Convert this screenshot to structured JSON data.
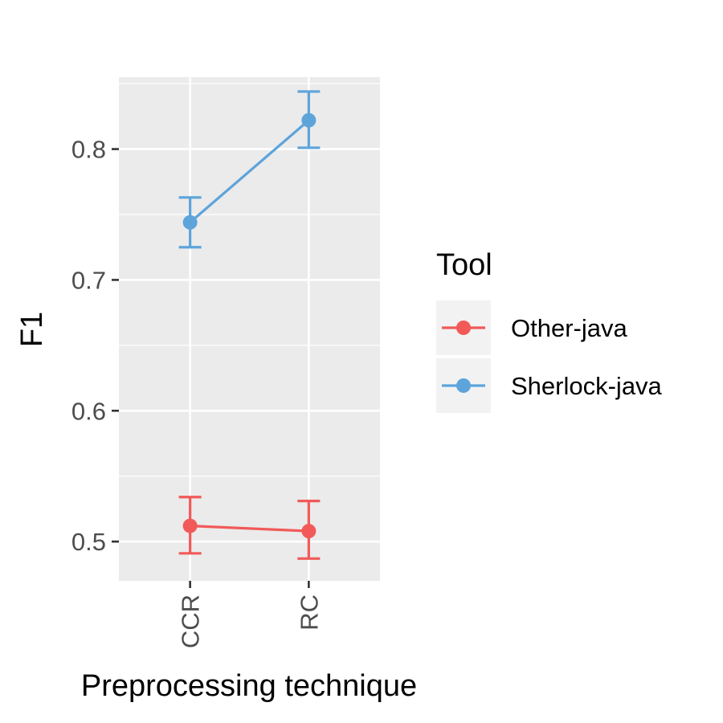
{
  "chart_data": {
    "type": "line",
    "title": "",
    "xlabel": "Preprocessing technique",
    "ylabel": "F1",
    "categories": [
      "CCR",
      "RC"
    ],
    "ylim": [
      0.47,
      0.855
    ],
    "yticks": [
      0.5,
      0.6,
      0.7,
      0.8
    ],
    "ytick_labels": [
      "0.5",
      "0.6",
      "0.7",
      "0.8"
    ],
    "grid": true,
    "legend": {
      "title": "Tool",
      "placement": "right"
    },
    "series": [
      {
        "name": "Other-java",
        "color": "#f15a59",
        "values": [
          0.512,
          0.508
        ],
        "error_low": [
          0.491,
          0.487
        ],
        "error_high": [
          0.534,
          0.531
        ]
      },
      {
        "name": "Sherlock-java",
        "color": "#5da4db",
        "values": [
          0.744,
          0.822
        ],
        "error_low": [
          0.725,
          0.801
        ],
        "error_high": [
          0.763,
          0.844
        ]
      }
    ]
  }
}
